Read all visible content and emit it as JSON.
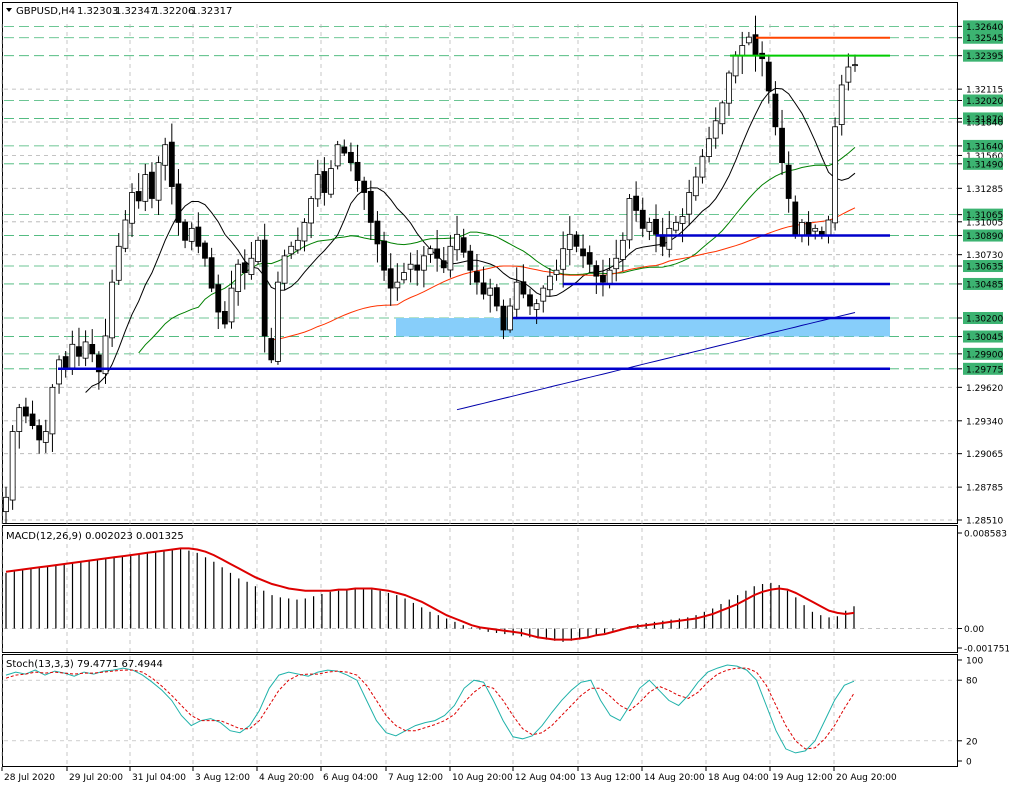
{
  "header": {
    "symbol": "GBPUSD,H4",
    "open": "1.32303",
    "high": "1.32347",
    "low": "1.32206",
    "close": "1.32317"
  },
  "macd_label": "MACD(12,26,9) 0.002023 0.001325",
  "stoch_label": "Stoch(13,3,3) 79.4771 67.4944",
  "colors": {
    "bull": "#ffffff",
    "bear": "#000000",
    "sma_black": "#000000",
    "sma_green": "#008000",
    "sma_orange": "#ff3300",
    "sma_blue": "#0000aa",
    "support": "#0000cc",
    "zone": "#87cefa",
    "resistance_orange": "#ff4500",
    "resistance_green": "#00cc00",
    "label_bg": "#3cb371",
    "macd_signal": "#dd0000",
    "stoch_main": "#20b2aa",
    "stoch_signal": "#dd0000"
  },
  "chart_data": [
    {
      "type": "candlestick",
      "title": "GBPUSD,H4",
      "price_axis": [
        "1.32640",
        "1.32545",
        "1.32395",
        "1.32115",
        "1.32020",
        "1.31870",
        "1.31840",
        "1.31640",
        "1.31560",
        "1.31490",
        "1.31285",
        "1.31065",
        "1.31005",
        "1.30890",
        "1.30730",
        "1.30635",
        "1.30485",
        "1.30200",
        "1.30045",
        "1.29900",
        "1.29775",
        "1.29620",
        "1.29340",
        "1.29065",
        "1.28785",
        "1.28510"
      ],
      "highlighted_levels": [
        "1.32640",
        "1.32545",
        "1.32395",
        "1.32020",
        "1.31870",
        "1.31640",
        "1.31490",
        "1.31065",
        "1.30890",
        "1.30635",
        "1.30485",
        "1.30200",
        "1.30045",
        "1.29900",
        "1.29775"
      ],
      "ylim": [
        1.2851,
        1.3266
      ],
      "time_axis": [
        "28 Jul 2020",
        "29 Jul 20:00",
        "31 Jul 04:00",
        "3 Aug 12:00",
        "4 Aug 20:00",
        "6 Aug 04:00",
        "7 Aug 12:00",
        "10 Aug 20:00",
        "12 Aug 04:00",
        "13 Aug 12:00",
        "14 Aug 20:00",
        "18 Aug 04:00",
        "19 Aug 12:00",
        "20 Aug 20:00"
      ],
      "closes": [
        1.287,
        1.2925,
        1.2945,
        1.2938,
        1.293,
        1.2918,
        1.2925,
        1.2962,
        1.2985,
        1.2978,
        1.2998,
        1.2988,
        1.3,
        1.299,
        1.2975,
        1.3005,
        1.305,
        1.308,
        1.3102,
        1.3125,
        1.3118,
        1.314,
        1.312,
        1.315,
        1.3165,
        1.313,
        1.31,
        1.3085,
        1.3095,
        1.308,
        1.307,
        1.3045,
        1.3025,
        1.3015,
        1.3045,
        1.3065,
        1.3058,
        1.307,
        1.3085,
        1.3005,
        1.2985,
        1.305,
        1.3072,
        1.308,
        1.3085,
        1.31,
        1.312,
        1.314,
        1.3125,
        1.3145,
        1.3165,
        1.3158,
        1.315,
        1.3135,
        1.3125,
        1.31,
        1.3082,
        1.306,
        1.3045,
        1.305,
        1.3058,
        1.3065,
        1.306,
        1.3072,
        1.3078,
        1.307,
        1.3062,
        1.308,
        1.309,
        1.3075,
        1.306,
        1.305,
        1.304,
        1.3045,
        1.303,
        1.301,
        1.303,
        1.305,
        1.304,
        1.303,
        1.3032,
        1.3045,
        1.3055,
        1.306,
        1.3078,
        1.309,
        1.308,
        1.3072,
        1.3065,
        1.3055,
        1.305,
        1.306,
        1.307,
        1.3085,
        1.312,
        1.311,
        1.3095,
        1.31,
        1.309,
        1.308,
        1.3095,
        1.31,
        1.3105,
        1.3125,
        1.3138,
        1.3155,
        1.317,
        1.3185,
        1.32,
        1.3225,
        1.324,
        1.3248,
        1.3255,
        1.324,
        1.3237,
        1.321,
        1.318,
        1.315,
        1.312,
        1.309,
        1.31,
        1.309,
        1.3095,
        1.309,
        1.3102,
        1.318,
        1.3215,
        1.323,
        1.3232
      ],
      "support_lines": [
        1.3089,
        1.30485,
        1.302,
        1.29775
      ],
      "resistance_lines": [
        1.32545,
        1.32395
      ],
      "demand_zone": [
        1.30045,
        1.302
      ],
      "moving_averages": [
        "black",
        "green",
        "orange",
        "blue"
      ]
    },
    {
      "type": "bar",
      "title": "MACD(12,26,9)",
      "ticks": [
        "0.008583",
        "0.00",
        "-0.001751"
      ],
      "ylim": [
        -0.001751,
        0.008583
      ],
      "histogram_values": [
        0.005,
        0.0052,
        0.0053,
        0.0054,
        0.0055,
        0.0056,
        0.0057,
        0.0058,
        0.0059,
        0.006,
        0.0061,
        0.0062,
        0.0063,
        0.0064,
        0.0065,
        0.0066,
        0.0067,
        0.0068,
        0.0069,
        0.007,
        0.0071,
        0.0072,
        0.007,
        0.0068,
        0.0064,
        0.006,
        0.0055,
        0.005,
        0.0045,
        0.0042,
        0.0038,
        0.0034,
        0.003,
        0.0028,
        0.0027,
        0.0026,
        0.0027,
        0.0029,
        0.0031,
        0.0033,
        0.0034,
        0.0035,
        0.0036,
        0.0036,
        0.0035,
        0.0034,
        0.0032,
        0.003,
        0.0027,
        0.0023,
        0.0019,
        0.0015,
        0.0012,
        0.0009,
        0.0006,
        0.0003,
        0.0001,
        -0.0001,
        -0.0003,
        -0.0004,
        -0.0005,
        -0.0006,
        -0.0007,
        -0.0008,
        -0.0009,
        -0.001,
        -0.0011,
        -0.0012,
        -0.0011,
        -0.001,
        -0.0008,
        -0.0006,
        -0.0004,
        -0.0002,
        0.0,
        0.0002,
        0.0004,
        0.0005,
        0.0006,
        0.0007,
        0.0008,
        0.0009,
        0.001,
        0.0012,
        0.0015,
        0.0018,
        0.0022,
        0.0026,
        0.003,
        0.0034,
        0.0038,
        0.004,
        0.0041,
        0.0039,
        0.0034,
        0.0028,
        0.0021,
        0.0015,
        0.0012,
        0.001,
        0.0011,
        0.0016,
        0.002
      ],
      "signal_values": [
        0.0051,
        0.0052,
        0.0053,
        0.0054,
        0.0055,
        0.0056,
        0.0057,
        0.0058,
        0.0059,
        0.006,
        0.0061,
        0.0062,
        0.0063,
        0.0064,
        0.0065,
        0.0066,
        0.0067,
        0.0068,
        0.0069,
        0.007,
        0.0071,
        0.0072,
        0.0072,
        0.0071,
        0.0069,
        0.0066,
        0.0062,
        0.0058,
        0.0054,
        0.005,
        0.0046,
        0.0043,
        0.004,
        0.0038,
        0.0036,
        0.0035,
        0.0034,
        0.0034,
        0.0034,
        0.0034,
        0.0035,
        0.0035,
        0.0036,
        0.0036,
        0.0036,
        0.0035,
        0.0034,
        0.0032,
        0.003,
        0.0027,
        0.0024,
        0.002,
        0.0016,
        0.0012,
        0.0009,
        0.0006,
        0.0003,
        0.0001,
        0.0,
        -0.0001,
        -0.0002,
        -0.0003,
        -0.0004,
        -0.0006,
        -0.0008,
        -0.0009,
        -0.001,
        -0.001,
        -0.001,
        -0.0009,
        -0.0008,
        -0.0006,
        -0.0005,
        -0.0003,
        -0.0001,
        0.0001,
        0.0002,
        0.0003,
        0.0004,
        0.0005,
        0.0006,
        0.0007,
        0.0008,
        0.0009,
        0.0011,
        0.0013,
        0.0016,
        0.0019,
        0.0022,
        0.0026,
        0.003,
        0.0033,
        0.0035,
        0.0036,
        0.0035,
        0.0032,
        0.0028,
        0.0024,
        0.002,
        0.0016,
        0.0014,
        0.0013,
        0.0014
      ]
    },
    {
      "type": "line",
      "title": "Stoch(13,3,3)",
      "ticks": [
        "100",
        "80",
        "20",
        "0"
      ],
      "ylim": [
        0,
        100
      ],
      "main_values": [
        85,
        88,
        86,
        90,
        85,
        89,
        87,
        84,
        88,
        86,
        89,
        90,
        92,
        90,
        85,
        78,
        70,
        60,
        45,
        35,
        40,
        42,
        38,
        30,
        28,
        35,
        50,
        72,
        85,
        88,
        86,
        84,
        88,
        90,
        89,
        85,
        80,
        60,
        40,
        28,
        25,
        30,
        35,
        38,
        40,
        45,
        55,
        72,
        80,
        78,
        60,
        40,
        24,
        22,
        25,
        35,
        48,
        60,
        70,
        78,
        80,
        60,
        45,
        40,
        55,
        72,
        80,
        70,
        60,
        55,
        65,
        78,
        88,
        92,
        95,
        94,
        90,
        80,
        55,
        30,
        12,
        8,
        10,
        20,
        40,
        60,
        75,
        79
      ],
      "signal_values": [
        82,
        85,
        86,
        88,
        87,
        88,
        87,
        86,
        87,
        87,
        88,
        89,
        90,
        90,
        88,
        82,
        74,
        65,
        55,
        45,
        40,
        40,
        40,
        36,
        32,
        32,
        40,
        55,
        70,
        80,
        85,
        86,
        86,
        88,
        89,
        88,
        85,
        75,
        60,
        45,
        35,
        30,
        30,
        33,
        36,
        40,
        46,
        58,
        68,
        75,
        72,
        60,
        45,
        32,
        26,
        28,
        35,
        45,
        55,
        65,
        72,
        72,
        64,
        55,
        50,
        58,
        68,
        74,
        70,
        65,
        62,
        68,
        78,
        86,
        90,
        92,
        92,
        88,
        75,
        55,
        35,
        20,
        12,
        13,
        22,
        35,
        52,
        67
      ]
    }
  ]
}
